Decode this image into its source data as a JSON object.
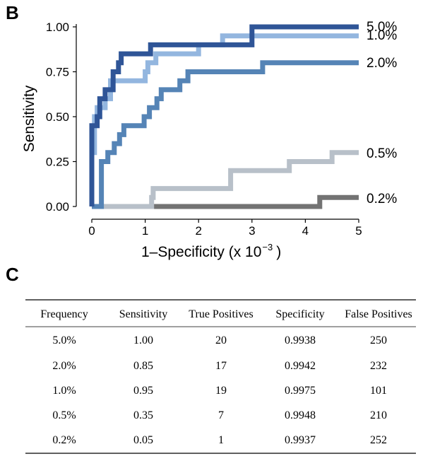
{
  "panel_b_label": "B",
  "panel_c_label": "C",
  "chart_data": {
    "type": "line",
    "xlabel": "1–Specificity (x 10",
    "xlabel_exp": "−3",
    "xlabel_close": ")",
    "ylabel": "Sensitivity",
    "xlim": [
      0,
      5
    ],
    "ylim": [
      0,
      1
    ],
    "x_ticks": [
      0,
      1,
      2,
      3,
      4,
      5
    ],
    "x_tick_labels": [
      "0",
      "1",
      "2",
      "3",
      "4",
      "5"
    ],
    "y_ticks": [
      0,
      0.25,
      0.5,
      0.75,
      1.0
    ],
    "y_tick_labels": [
      "0.00",
      "0.25",
      "0.50",
      "0.75",
      "1.00"
    ],
    "grid": false,
    "legend": "none",
    "series": [
      {
        "name": "0.2%",
        "color": "#737373",
        "points": [
          [
            0,
            0
          ],
          [
            4.27,
            0
          ],
          [
            4.27,
            0.05
          ],
          [
            5,
            0.05
          ]
        ]
      },
      {
        "name": "0.5%",
        "color": "#b8c0c9",
        "points": [
          [
            0,
            0
          ],
          [
            1.12,
            0
          ],
          [
            1.12,
            0.05
          ],
          [
            1.15,
            0.05
          ],
          [
            1.15,
            0.1
          ],
          [
            2.6,
            0.1
          ],
          [
            2.6,
            0.2
          ],
          [
            3.7,
            0.2
          ],
          [
            3.7,
            0.25
          ],
          [
            4.5,
            0.25
          ],
          [
            4.5,
            0.3
          ],
          [
            5,
            0.3
          ]
        ]
      },
      {
        "name": "2.0%",
        "color": "#5584b6",
        "points": [
          [
            0,
            0
          ],
          [
            0.18,
            0
          ],
          [
            0.18,
            0.25
          ],
          [
            0.3,
            0.25
          ],
          [
            0.3,
            0.3
          ],
          [
            0.42,
            0.3
          ],
          [
            0.42,
            0.35
          ],
          [
            0.52,
            0.35
          ],
          [
            0.52,
            0.4
          ],
          [
            0.6,
            0.4
          ],
          [
            0.6,
            0.45
          ],
          [
            0.98,
            0.45
          ],
          [
            0.98,
            0.5
          ],
          [
            1.08,
            0.5
          ],
          [
            1.08,
            0.55
          ],
          [
            1.22,
            0.55
          ],
          [
            1.22,
            0.6
          ],
          [
            1.3,
            0.6
          ],
          [
            1.3,
            0.65
          ],
          [
            1.65,
            0.65
          ],
          [
            1.65,
            0.7
          ],
          [
            1.8,
            0.7
          ],
          [
            1.8,
            0.75
          ],
          [
            3.2,
            0.75
          ],
          [
            3.2,
            0.8
          ],
          [
            5,
            0.8
          ]
        ]
      },
      {
        "name": "1.0%",
        "color": "#93b6df",
        "points": [
          [
            0,
            0
          ],
          [
            0,
            0.3
          ],
          [
            0.05,
            0.3
          ],
          [
            0.05,
            0.5
          ],
          [
            0.1,
            0.5
          ],
          [
            0.1,
            0.55
          ],
          [
            0.25,
            0.55
          ],
          [
            0.25,
            0.6
          ],
          [
            0.35,
            0.6
          ],
          [
            0.35,
            0.7
          ],
          [
            1.0,
            0.7
          ],
          [
            1.0,
            0.75
          ],
          [
            1.05,
            0.75
          ],
          [
            1.05,
            0.8
          ],
          [
            1.2,
            0.8
          ],
          [
            1.2,
            0.85
          ],
          [
            2.0,
            0.85
          ],
          [
            2.0,
            0.9
          ],
          [
            2.45,
            0.9
          ],
          [
            2.45,
            0.95
          ],
          [
            5,
            0.95
          ]
        ]
      },
      {
        "name": "5.0%",
        "color": "#2f5597",
        "points": [
          [
            0,
            0
          ],
          [
            0,
            0.45
          ],
          [
            0.1,
            0.45
          ],
          [
            0.1,
            0.5
          ],
          [
            0.15,
            0.5
          ],
          [
            0.15,
            0.6
          ],
          [
            0.25,
            0.6
          ],
          [
            0.25,
            0.65
          ],
          [
            0.4,
            0.65
          ],
          [
            0.4,
            0.75
          ],
          [
            0.5,
            0.75
          ],
          [
            0.5,
            0.8
          ],
          [
            0.55,
            0.8
          ],
          [
            0.55,
            0.85
          ],
          [
            1.1,
            0.85
          ],
          [
            1.1,
            0.9
          ],
          [
            3.0,
            0.9
          ],
          [
            3.0,
            1.0
          ],
          [
            5,
            1.0
          ]
        ]
      }
    ],
    "series_labels": [
      {
        "text": "5.0%",
        "y": 1.0
      },
      {
        "text": "1.0%",
        "y": 0.95
      },
      {
        "text": "2.0%",
        "y": 0.8
      },
      {
        "text": "0.5%",
        "y": 0.3
      },
      {
        "text": "0.2%",
        "y": 0.05
      }
    ]
  },
  "table": {
    "headers": [
      "Frequency",
      "Sensitivity",
      "True Positives",
      "Specificity",
      "False Positives"
    ],
    "rows": [
      [
        "5.0%",
        "1.00",
        "20",
        "0.9938",
        "250"
      ],
      [
        "2.0%",
        "0.85",
        "17",
        "0.9942",
        "232"
      ],
      [
        "1.0%",
        "0.95",
        "19",
        "0.9975",
        "101"
      ],
      [
        "0.5%",
        "0.35",
        "7",
        "0.9948",
        "210"
      ],
      [
        "0.2%",
        "0.05",
        "1",
        "0.9937",
        "252"
      ]
    ]
  }
}
